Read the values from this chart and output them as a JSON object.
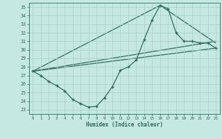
{
  "xlabel": "Humidex (Indice chaleur)",
  "bg_color": "#c5e8e2",
  "line_color": "#2a6b5a",
  "grid_color": "#a8cfc8",
  "xlim": [
    -0.5,
    23.5
  ],
  "ylim": [
    22.5,
    35.5
  ],
  "yticks": [
    23,
    24,
    25,
    26,
    27,
    28,
    29,
    30,
    31,
    32,
    33,
    34,
    35
  ],
  "xticks": [
    0,
    1,
    2,
    3,
    4,
    5,
    6,
    7,
    8,
    9,
    10,
    11,
    12,
    13,
    14,
    15,
    16,
    17,
    18,
    19,
    20,
    21,
    22,
    23
  ],
  "curve_x": [
    0,
    1,
    2,
    3,
    4,
    5,
    6,
    7,
    8,
    9,
    10,
    11,
    12,
    13,
    14,
    15,
    16,
    17,
    18,
    19,
    20,
    21,
    22,
    23
  ],
  "curve_y": [
    27.5,
    27.0,
    26.3,
    25.8,
    25.2,
    24.2,
    23.7,
    23.3,
    23.4,
    24.4,
    25.7,
    27.6,
    28.0,
    28.8,
    31.2,
    33.5,
    35.2,
    34.8,
    32.0,
    31.0,
    31.0,
    30.8,
    30.8,
    30.2
  ],
  "line1_x": [
    0,
    23
  ],
  "line1_y": [
    27.5,
    30.2
  ],
  "line2_x": [
    0,
    23
  ],
  "line2_y": [
    27.5,
    31.0
  ],
  "line3_x": [
    0,
    16,
    23
  ],
  "line3_y": [
    27.5,
    35.2,
    30.8
  ]
}
